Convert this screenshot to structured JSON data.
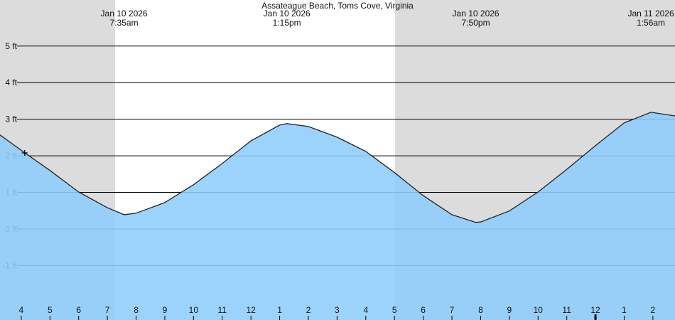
{
  "chart_data": {
    "type": "area",
    "title": "Assateague Beach, Toms Cove, Virginia",
    "x": [
      3.26,
      4,
      5,
      6,
      7,
      7.58,
      8,
      9,
      10,
      11,
      12,
      13,
      13.25,
      14,
      15,
      16,
      17,
      18,
      19,
      19.83,
      20,
      21,
      22,
      23,
      24,
      25,
      25.93,
      26.77
    ],
    "series": [
      {
        "color": "#8ecdfc",
        "values": [
          2.57,
          2.15,
          1.6,
          1.01,
          0.58,
          0.39,
          0.43,
          0.72,
          1.21,
          1.79,
          2.41,
          2.84,
          2.88,
          2.8,
          2.51,
          2.12,
          1.54,
          0.91,
          0.39,
          0.18,
          0.19,
          0.49,
          1.01,
          1.63,
          2.28,
          2.9,
          3.19,
          3.09
        ]
      }
    ],
    "xlim": [
      3.26,
      26.77
    ],
    "ylim": [
      -2.49,
      6.26
    ],
    "daylight": [
      7.27,
      17.02
    ],
    "night_color": "#dcdcdc",
    "day_color": "#ffffff",
    "grid": true,
    "xticks": [
      4,
      5,
      6,
      7,
      8,
      9,
      10,
      11,
      12,
      {
        "value": 13,
        "label": "1"
      },
      {
        "value": 14,
        "label": "2"
      },
      {
        "value": 15,
        "label": "3"
      },
      {
        "value": 16,
        "label": "4"
      },
      {
        "value": 17,
        "label": "5"
      },
      {
        "value": 18,
        "label": "6"
      },
      {
        "value": 19,
        "label": "7"
      },
      {
        "value": 20,
        "label": "8"
      },
      {
        "value": 21,
        "label": "9"
      },
      {
        "value": 22,
        "label": "10"
      },
      {
        "value": 23,
        "label": "11"
      },
      {
        "value": 24,
        "label": "12"
      },
      {
        "value": 25,
        "label": "1"
      },
      {
        "value": 26,
        "label": "2"
      }
    ],
    "midnight": 24,
    "yticks": [
      {
        "value": -1,
        "label": "-1 ft"
      },
      {
        "value": 0,
        "label": "0 ft"
      },
      {
        "value": 1,
        "label": "1 ft"
      },
      {
        "value": 2,
        "label": "2 ft"
      },
      {
        "value": 3,
        "label": "3 ft"
      },
      {
        "value": 4,
        "label": "4 ft"
      },
      {
        "value": 5,
        "label": "5 ft"
      }
    ],
    "events": [
      {
        "x": 7.58,
        "date": "Jan 10 2026",
        "time": "7:35am"
      },
      {
        "x": 13.25,
        "date": "Jan 10 2026",
        "time": "1:15pm"
      },
      {
        "x": 19.83,
        "date": "Jan 10 2026",
        "time": "7:50pm"
      },
      {
        "x": 25.93,
        "date": "Jan 11 2026",
        "time": "1:56am"
      }
    ],
    "marker": {
      "x": 4.12,
      "y": 2.08
    }
  }
}
